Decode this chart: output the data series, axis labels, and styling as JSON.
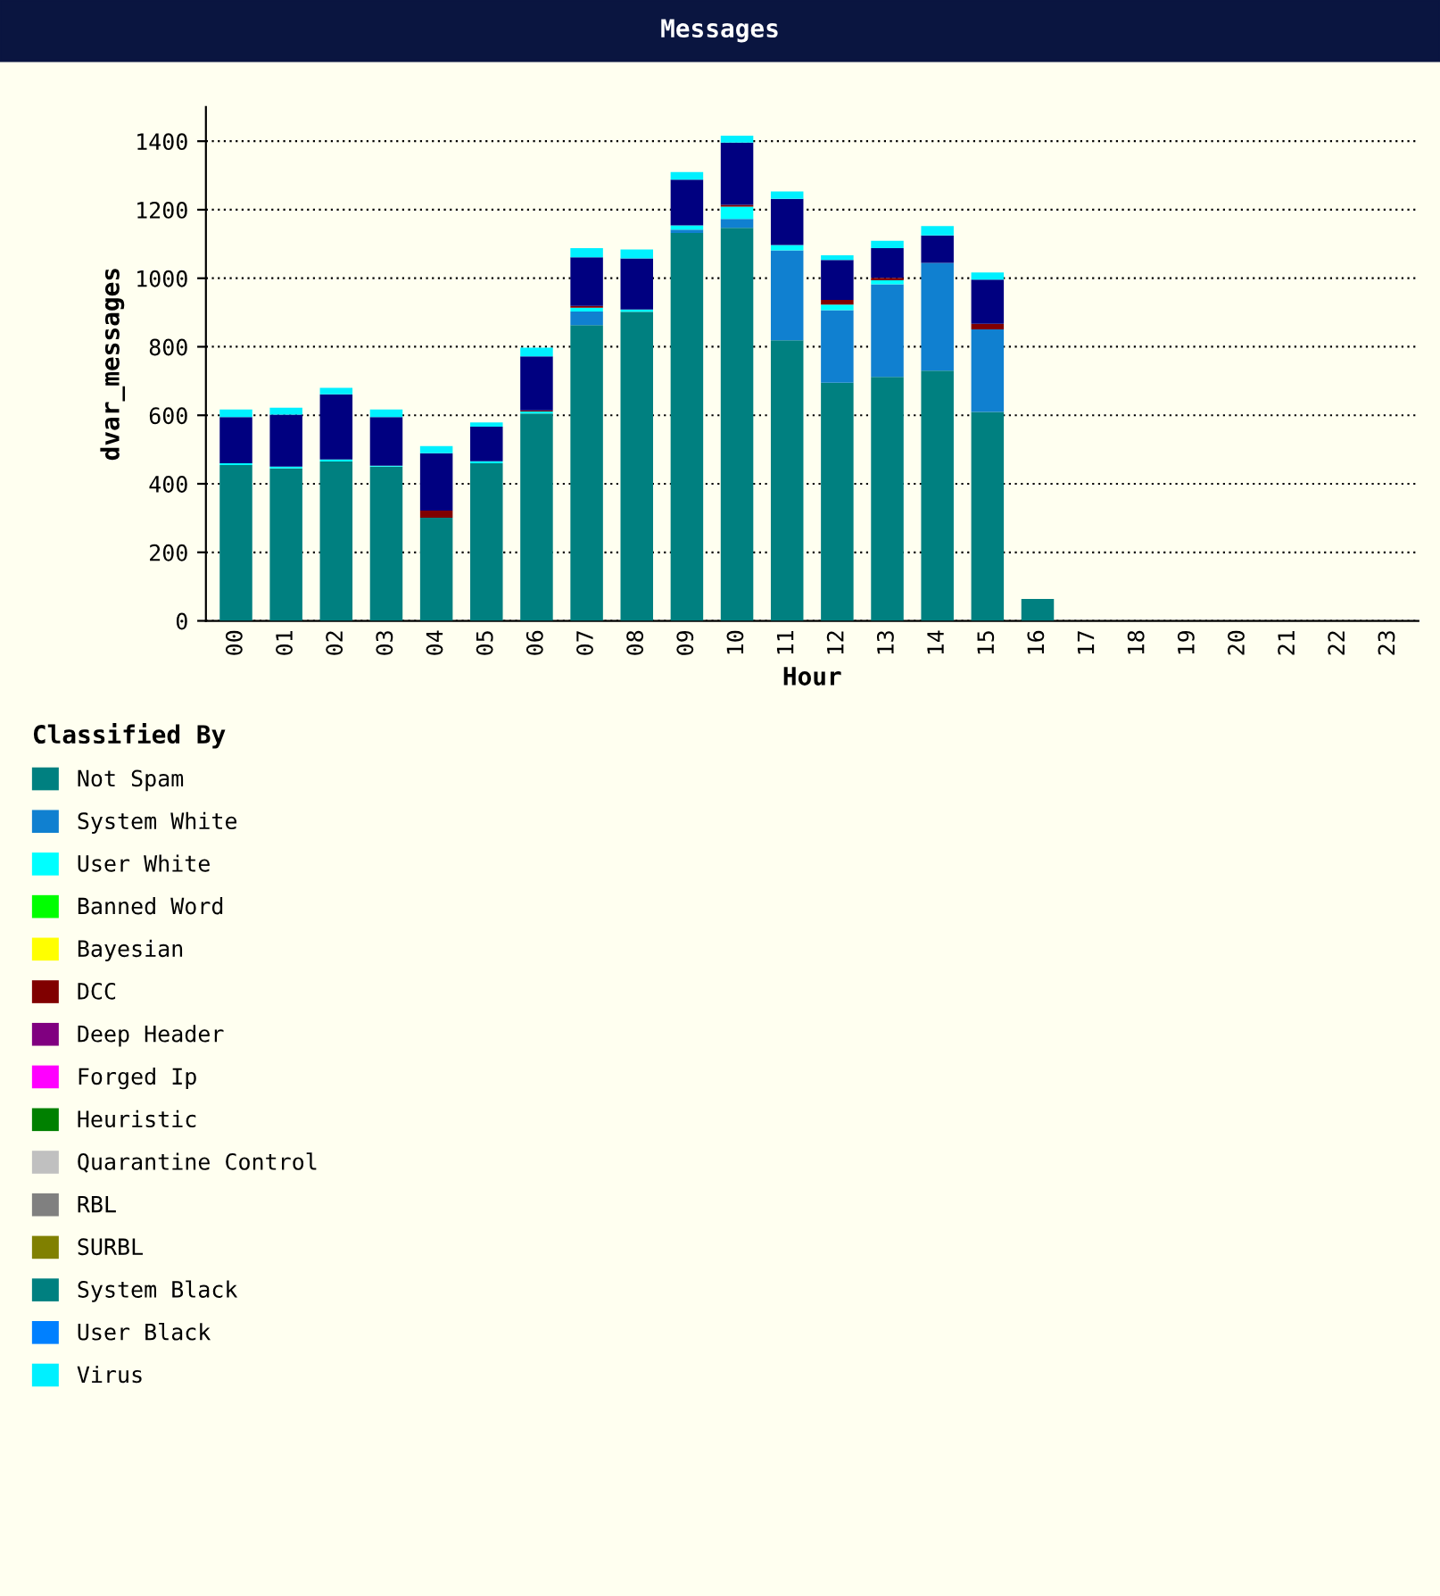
{
  "chart_data": {
    "type": "bar",
    "title": "Messages",
    "xlabel": "Hour",
    "ylabel": "dvar_messages",
    "legend_title": "Classified By",
    "categories": [
      "00",
      "01",
      "02",
      "03",
      "04",
      "05",
      "06",
      "07",
      "08",
      "09",
      "10",
      "11",
      "12",
      "13",
      "14",
      "15",
      "16",
      "17",
      "18",
      "19",
      "20",
      "21",
      "22",
      "23"
    ],
    "stacked": true,
    "ylim": [
      0,
      1500
    ],
    "yticks": [
      0,
      200,
      400,
      600,
      800,
      1000,
      1200,
      1400
    ],
    "grid": "y",
    "legend": "bottom left",
    "series": [
      {
        "name": "Not Spam",
        "color": "#008080",
        "values": [
          455,
          445,
          465,
          450,
          301,
          460,
          605,
          863,
          902,
          1132,
          1147,
          819,
          695,
          712,
          730,
          610,
          64,
          0,
          0,
          0,
          0,
          0,
          0,
          0
        ]
      },
      {
        "name": "System White",
        "color": "#1080d0",
        "values": [
          0,
          0,
          0,
          0,
          0,
          0,
          0,
          40,
          0,
          10,
          26,
          262,
          212,
          270,
          315,
          241,
          0,
          0,
          0,
          0,
          0,
          0,
          0,
          0
        ]
      },
      {
        "name": "User White",
        "color": "#00ffff",
        "values": [
          5,
          5,
          6,
          3,
          0,
          6,
          6,
          11,
          7,
          12,
          36,
          16,
          16,
          12,
          0,
          0,
          0,
          0,
          0,
          0,
          0,
          0,
          0,
          0
        ]
      },
      {
        "name": "Banned Word",
        "color": "#00ff00",
        "values": [
          0,
          0,
          0,
          0,
          0,
          0,
          0,
          0,
          0,
          0,
          0,
          0,
          0,
          0,
          0,
          0,
          0,
          0,
          0,
          0,
          0,
          0,
          0,
          0
        ]
      },
      {
        "name": "Bayesian",
        "color": "#ffff00",
        "values": [
          0,
          0,
          0,
          0,
          0,
          0,
          0,
          0,
          0,
          0,
          0,
          0,
          0,
          0,
          0,
          0,
          0,
          0,
          0,
          0,
          0,
          0,
          0,
          0
        ]
      },
      {
        "name": "DCC",
        "color": "#800000",
        "values": [
          0,
          0,
          0,
          0,
          21,
          0,
          3,
          5,
          0,
          0,
          5,
          0,
          14,
          7,
          0,
          16,
          0,
          0,
          0,
          0,
          0,
          0,
          0,
          0
        ]
      },
      {
        "name": "Deep Header",
        "color": "#800080",
        "values": [
          0,
          0,
          0,
          0,
          0,
          0,
          0,
          0,
          0,
          0,
          0,
          0,
          0,
          0,
          0,
          0,
          0,
          0,
          0,
          0,
          0,
          0,
          0,
          0
        ]
      },
      {
        "name": "Forged Ip",
        "color": "#ff00ff",
        "values": [
          0,
          0,
          0,
          0,
          0,
          0,
          0,
          0,
          0,
          0,
          0,
          0,
          0,
          0,
          0,
          0,
          0,
          0,
          0,
          0,
          0,
          0,
          0,
          0
        ]
      },
      {
        "color": "#000080",
        "values": [
          135,
          152,
          190,
          142,
          167,
          101,
          158,
          142,
          149,
          134,
          182,
          135,
          116,
          87,
          80,
          129,
          0,
          0,
          0,
          0,
          0,
          0,
          0,
          0
        ]
      },
      {
        "name": "Heuristic",
        "color": "#008000",
        "values": [
          0,
          0,
          0,
          0,
          0,
          0,
          0,
          0,
          0,
          0,
          0,
          0,
          0,
          0,
          0,
          0,
          0,
          0,
          0,
          0,
          0,
          0,
          0,
          0
        ]
      },
      {
        "name": "Quarantine Control",
        "color": "#c0c0c0",
        "values": [
          0,
          0,
          0,
          0,
          0,
          0,
          0,
          0,
          0,
          0,
          0,
          0,
          0,
          0,
          0,
          0,
          0,
          0,
          0,
          0,
          0,
          0,
          0,
          0
        ]
      },
      {
        "name": "RBL",
        "color": "#808080",
        "values": [
          0,
          0,
          0,
          0,
          0,
          0,
          0,
          0,
          0,
          0,
          0,
          0,
          0,
          0,
          0,
          0,
          0,
          0,
          0,
          0,
          0,
          0,
          0,
          0
        ]
      },
      {
        "name": "SURBL",
        "color": "#808000",
        "values": [
          0,
          0,
          0,
          0,
          0,
          0,
          0,
          0,
          0,
          0,
          0,
          0,
          0,
          0,
          0,
          0,
          0,
          0,
          0,
          0,
          0,
          0,
          0,
          0
        ]
      },
      {
        "name": "System Black",
        "color": "#008080",
        "values": [
          0,
          0,
          0,
          0,
          0,
          0,
          0,
          0,
          0,
          0,
          0,
          0,
          0,
          0,
          0,
          0,
          0,
          0,
          0,
          0,
          0,
          0,
          0,
          0
        ]
      },
      {
        "name": "User Black",
        "color": "#0080ff",
        "values": [
          0,
          0,
          0,
          0,
          0,
          0,
          0,
          0,
          0,
          0,
          0,
          0,
          0,
          0,
          0,
          0,
          0,
          0,
          0,
          0,
          0,
          0,
          0,
          0
        ]
      },
      {
        "name": "Virus",
        "color": "#00f0ff",
        "values": [
          22,
          20,
          19,
          22,
          21,
          12,
          25,
          27,
          26,
          22,
          20,
          21,
          14,
          21,
          27,
          21,
          0,
          0,
          0,
          0,
          0,
          0,
          0,
          0
        ]
      }
    ]
  }
}
